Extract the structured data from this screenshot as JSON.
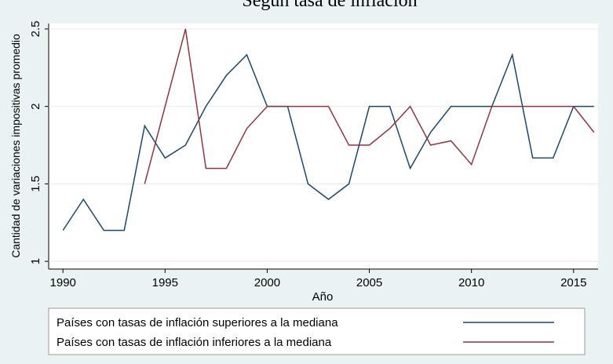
{
  "chart_data": {
    "type": "line",
    "title": "Según tasa de inflación",
    "x_label": "Año",
    "y_label": "Cantidad de variaciones impositivas promedio",
    "x": [
      1990,
      1991,
      1992,
      1993,
      1994,
      1995,
      1996,
      1997,
      1998,
      1999,
      2000,
      2001,
      2002,
      2003,
      2004,
      2005,
      2006,
      2007,
      2008,
      2009,
      2010,
      2011,
      2012,
      2013,
      2014,
      2015,
      2016
    ],
    "series": [
      {
        "name": "Países con tasas de inflación superiores a la mediana",
        "color": "#1a476f",
        "values": [
          1.2,
          1.4,
          1.2,
          1.2,
          1.875,
          1.667,
          1.75,
          2.0,
          2.2,
          2.333,
          2.0,
          2.0,
          1.5,
          1.4,
          1.5,
          2.0,
          2.0,
          1.6,
          1.833,
          2.0,
          2.0,
          2.0,
          2.333,
          1.667,
          1.667,
          2.0,
          2.0
        ]
      },
      {
        "name": "Países con tasas de inflación inferiores a la mediana",
        "color": "#90353b",
        "values": [
          null,
          null,
          null,
          null,
          1.5,
          2.0,
          2.5,
          1.6,
          1.6,
          1.857,
          2.0,
          2.0,
          2.0,
          2.0,
          1.75,
          1.75,
          1.857,
          2.0,
          1.75,
          1.778,
          1.625,
          2.0,
          2.0,
          2.0,
          2.0,
          2.0,
          1.833
        ]
      }
    ],
    "xlim": [
      1989.3,
      2016.2
    ],
    "xticks": [
      1990,
      1995,
      2000,
      2005,
      2010,
      2015
    ],
    "ylim": [
      0.95,
      2.535
    ],
    "yticks": [
      1,
      1.5,
      2,
      2.5
    ],
    "grid": true
  }
}
